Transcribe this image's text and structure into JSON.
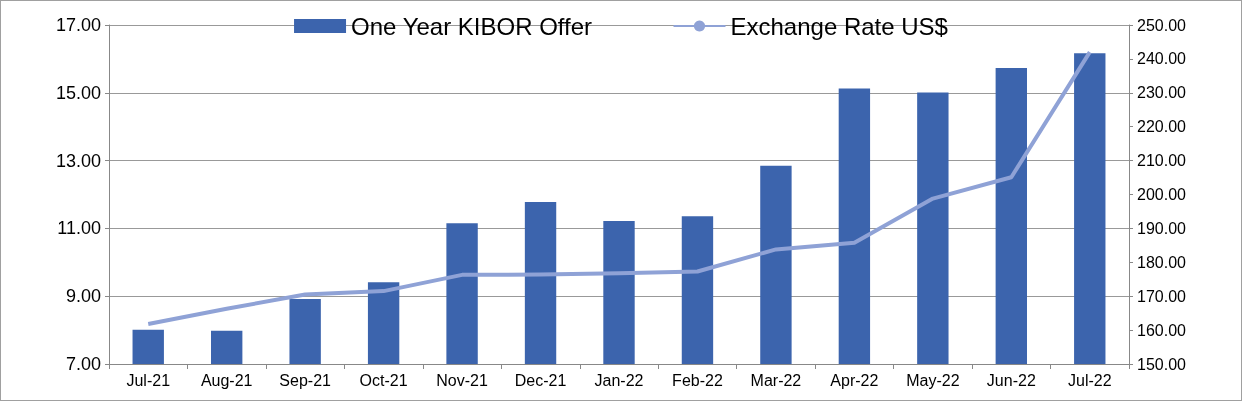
{
  "chart_data": {
    "type": "bar",
    "categories": [
      "Jul-21",
      "Aug-21",
      "Sep-21",
      "Oct-21",
      "Nov-21",
      "Dec-21",
      "Jan-22",
      "Feb-22",
      "Mar-22",
      "Apr-22",
      "May-22",
      "Jun-22",
      "Jul-22"
    ],
    "series": [
      {
        "name": "One Year KIBOR Offer",
        "color": "#3c64ad",
        "values": [
          8.01,
          7.98,
          8.92,
          9.41,
          11.15,
          11.78,
          11.22,
          11.36,
          12.85,
          15.13,
          15.01,
          15.73,
          16.17
        ]
      },
      {
        "name": "Exchange Rate US$",
        "type": "line",
        "axis": "y2",
        "color": "#8fa2d6",
        "values": [
          161.8,
          166.3,
          170.5,
          171.5,
          176.3,
          176.4,
          176.8,
          177.3,
          183.8,
          185.8,
          198.8,
          205.1,
          242.0
        ]
      }
    ],
    "ylim": [
      7,
      17
    ],
    "yticks": [
      {
        "value": 7,
        "label": "7.00"
      },
      {
        "value": 9,
        "label": "9.00"
      },
      {
        "value": 11,
        "label": "11.00"
      },
      {
        "value": 13,
        "label": "13.00"
      },
      {
        "value": 15,
        "label": "15.00"
      },
      {
        "value": 17,
        "label": "17.00"
      }
    ],
    "y2lim": [
      150,
      250
    ],
    "y2ticks": [
      {
        "value": 150,
        "label": "150.00"
      },
      {
        "value": 160,
        "label": "160.00"
      },
      {
        "value": 170,
        "label": "170.00"
      },
      {
        "value": 180,
        "label": "180.00"
      },
      {
        "value": 190,
        "label": "190.00"
      },
      {
        "value": 200,
        "label": "200.00"
      },
      {
        "value": 210,
        "label": "210.00"
      },
      {
        "value": 220,
        "label": "220.00"
      },
      {
        "value": 230,
        "label": "230.00"
      },
      {
        "value": 240,
        "label": "240.00"
      },
      {
        "value": 250,
        "label": "250.00"
      }
    ],
    "grid": "y",
    "legend": "top",
    "marker": "none"
  }
}
